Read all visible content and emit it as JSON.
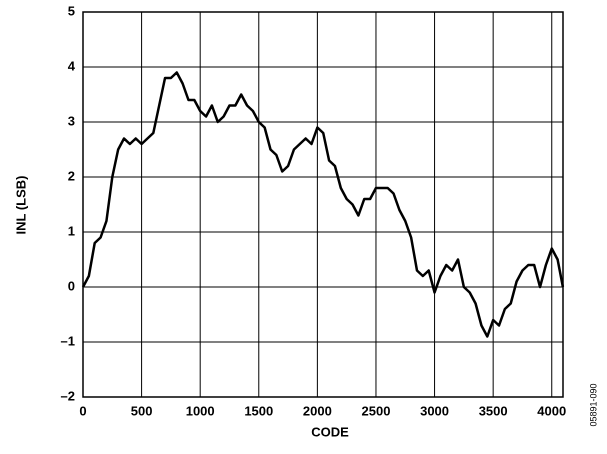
{
  "chart_data": {
    "type": "line",
    "xlabel": "CODE",
    "ylabel": "INL (LSB)",
    "annotation": "05891-090",
    "x": [
      0,
      50,
      100,
      150,
      200,
      250,
      300,
      350,
      400,
      450,
      500,
      550,
      600,
      650,
      700,
      750,
      800,
      850,
      900,
      950,
      1000,
      1050,
      1100,
      1150,
      1200,
      1250,
      1300,
      1350,
      1400,
      1450,
      1500,
      1550,
      1600,
      1650,
      1700,
      1750,
      1800,
      1850,
      1900,
      1950,
      2000,
      2050,
      2100,
      2150,
      2200,
      2250,
      2300,
      2350,
      2400,
      2450,
      2500,
      2550,
      2600,
      2650,
      2700,
      2750,
      2800,
      2850,
      2900,
      2950,
      3000,
      3050,
      3100,
      3150,
      3200,
      3250,
      3300,
      3350,
      3400,
      3450,
      3500,
      3550,
      3600,
      3650,
      3700,
      3750,
      3800,
      3850,
      3900,
      3950,
      4000,
      4050,
      4095
    ],
    "series": [
      {
        "name": "INL",
        "color": "#000000",
        "values": [
          0,
          0.2,
          0.8,
          0.9,
          1.2,
          2.0,
          2.5,
          2.7,
          2.6,
          2.7,
          2.6,
          2.7,
          2.8,
          3.3,
          3.8,
          3.8,
          3.9,
          3.7,
          3.4,
          3.4,
          3.2,
          3.1,
          3.3,
          3.0,
          3.1,
          3.3,
          3.3,
          3.5,
          3.3,
          3.2,
          3.0,
          2.9,
          2.5,
          2.4,
          2.1,
          2.2,
          2.5,
          2.6,
          2.7,
          2.6,
          2.9,
          2.8,
          2.3,
          2.2,
          1.8,
          1.6,
          1.5,
          1.3,
          1.6,
          1.6,
          1.8,
          1.8,
          1.8,
          1.7,
          1.4,
          1.2,
          0.9,
          0.3,
          0.2,
          0.3,
          -0.1,
          0.2,
          0.4,
          0.3,
          0.5,
          0.0,
          -0.1,
          -0.3,
          -0.7,
          -0.9,
          -0.6,
          -0.7,
          -0.4,
          -0.3,
          0.1,
          0.3,
          0.4,
          0.4,
          0.0,
          0.4,
          0.7,
          0.5,
          0.0
        ]
      }
    ],
    "xlim": [
      0,
      4096
    ],
    "xticks": [
      0,
      500,
      1000,
      1500,
      2000,
      2500,
      3000,
      3500,
      4000
    ],
    "ylim": [
      -2,
      5
    ],
    "yticks": [
      {
        "value": -2,
        "label": "–2"
      },
      {
        "value": -1,
        "label": "–1"
      },
      0,
      1,
      2,
      3,
      4,
      5
    ],
    "grid": true
  }
}
